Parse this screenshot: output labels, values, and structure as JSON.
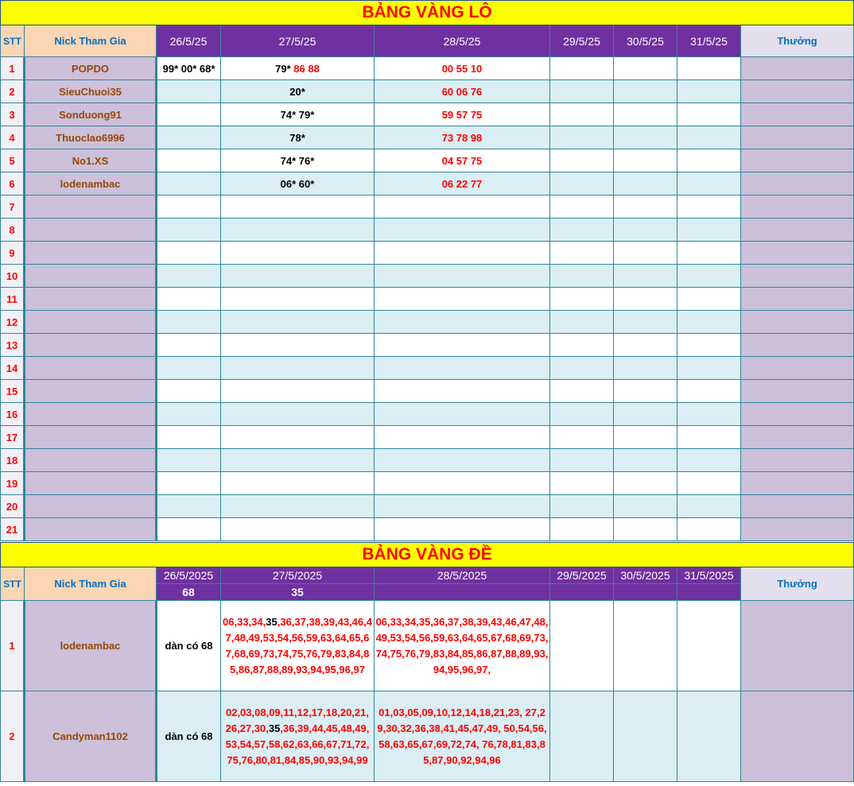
{
  "lo": {
    "title": "BẢNG VÀNG LÔ",
    "headers": {
      "stt": "STT",
      "nick": "Nick Tham Gia",
      "dates": [
        "26/5/25",
        "27/5/25",
        "28/5/25",
        "29/5/25",
        "30/5/25",
        "31/5/25"
      ],
      "prize": "Thưởng"
    },
    "rows": [
      {
        "stt": "1",
        "nick": "POPDO",
        "cells": [
          [
            [
              "blk",
              "99* 00* 68*"
            ]
          ],
          [
            [
              "blk",
              "79* "
            ],
            [
              "red",
              "86 88"
            ]
          ],
          [
            [
              "red",
              "00 55 10"
            ]
          ],
          [],
          [],
          []
        ]
      },
      {
        "stt": "2",
        "nick": "SieuChuoi35",
        "cells": [
          [],
          [
            [
              "blk",
              "20*"
            ]
          ],
          [
            [
              "red",
              "60 06 76"
            ]
          ],
          [],
          [],
          []
        ]
      },
      {
        "stt": "3",
        "nick": "Sonduong91",
        "cells": [
          [],
          [
            [
              "blk",
              "74* 79*"
            ]
          ],
          [
            [
              "red",
              "59 57 75"
            ]
          ],
          [],
          [],
          []
        ]
      },
      {
        "stt": "4",
        "nick": "Thuoclao6996",
        "cells": [
          [],
          [
            [
              "blk",
              "78*"
            ]
          ],
          [
            [
              "red",
              "73 78 98"
            ]
          ],
          [],
          [],
          []
        ]
      },
      {
        "stt": "5",
        "nick": "No1.XS",
        "cells": [
          [],
          [
            [
              "blk",
              "74* 76*"
            ]
          ],
          [
            [
              "red",
              "04 57 75"
            ]
          ],
          [],
          [],
          []
        ]
      },
      {
        "stt": "6",
        "nick": "lodenambac",
        "cells": [
          [],
          [
            [
              "blk",
              "06* 60*"
            ]
          ],
          [
            [
              "red",
              "06 22 77"
            ]
          ],
          [],
          [],
          []
        ]
      },
      {
        "stt": "7",
        "nick": "",
        "cells": []
      },
      {
        "stt": "8",
        "nick": "",
        "cells": []
      },
      {
        "stt": "9",
        "nick": "",
        "cells": []
      },
      {
        "stt": "10",
        "nick": "",
        "cells": []
      },
      {
        "stt": "11",
        "nick": "",
        "cells": []
      },
      {
        "stt": "12",
        "nick": "",
        "cells": []
      },
      {
        "stt": "13",
        "nick": "",
        "cells": []
      },
      {
        "stt": "14",
        "nick": "",
        "cells": []
      },
      {
        "stt": "15",
        "nick": "",
        "cells": []
      },
      {
        "stt": "16",
        "nick": "",
        "cells": []
      },
      {
        "stt": "17",
        "nick": "",
        "cells": []
      },
      {
        "stt": "18",
        "nick": "",
        "cells": []
      },
      {
        "stt": "19",
        "nick": "",
        "cells": []
      },
      {
        "stt": "20",
        "nick": "",
        "cells": []
      },
      {
        "stt": "21",
        "nick": "",
        "cells": []
      }
    ]
  },
  "de": {
    "title": "BẢNG VÀNG ĐỀ",
    "headers": {
      "stt": "STT",
      "nick": "Nick Tham Gia",
      "dates": [
        "26/5/2025",
        "27/5/2025",
        "28/5/2025",
        "29/5/2025",
        "30/5/2025",
        "31/5/2025"
      ],
      "results": [
        "68",
        "35",
        "",
        "",
        "",
        ""
      ],
      "prize": "Thưởng"
    },
    "rows": [
      {
        "stt": "1",
        "nick": "lodenambac",
        "cells": [
          [
            [
              "blk",
              "dàn có 68"
            ]
          ],
          [
            [
              "red",
              "06,33,34,"
            ],
            [
              "blk",
              "35"
            ],
            [
              "red",
              ",36,37,38,39,43,46,47,48,49,53,54,56,59,63,64,65,67,68,69,73,74,75,76,79,83,84,85,86,87,88,89,93,94,95,96,97"
            ]
          ],
          [
            [
              "red",
              "06,33,34,35,36,37,38,39,43,46,47,48, 49,53,54,56,59,63,64,65,67,68,69,73, 74,75,76,79,83,84,85,86,87,88,89,93, 94,95,96,97,"
            ]
          ],
          [],
          [],
          []
        ]
      },
      {
        "stt": "2",
        "nick": "Candyman1102",
        "cells": [
          [
            [
              "blk",
              "dàn có 68"
            ]
          ],
          [
            [
              "red",
              "02,03,08,09,11,12,17,18,20,21, 26,27,30,"
            ],
            [
              "blk",
              "35"
            ],
            [
              "red",
              ",36,39,44,45,48,49, 53,54,57,58,62,63,66,67,71,72, 75,76,80,81,84,85,90,93,94,99"
            ]
          ],
          [
            [
              "red",
              "01,03,05,09,10,12,14,18,21,23, 27,29,30,32,36,38,41,45,47,49, 50,54,56,58,63,65,67,69,72,74, 76,78,81,83,85,87,90,92,94,96"
            ]
          ],
          [],
          [],
          []
        ]
      }
    ]
  }
}
